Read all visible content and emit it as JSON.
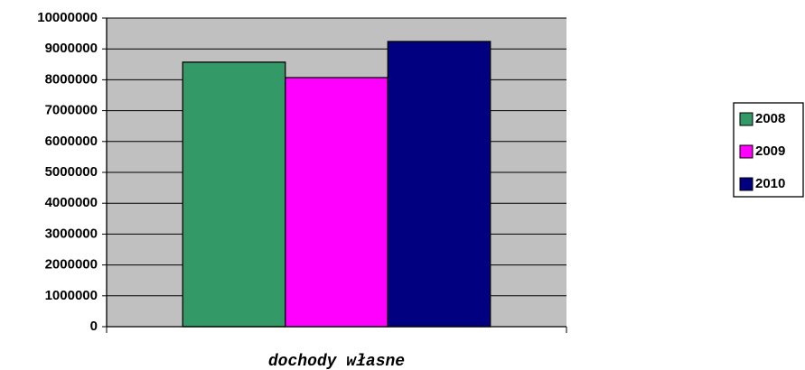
{
  "chart_data": {
    "type": "bar",
    "categories": [
      "dochody własne"
    ],
    "series": [
      {
        "name": "2008",
        "color": "#339966",
        "values": [
          8570000
        ]
      },
      {
        "name": "2009",
        "color": "#ff00ff",
        "values": [
          8070000
        ]
      },
      {
        "name": "2010",
        "color": "#000080",
        "values": [
          9240000
        ]
      }
    ],
    "ylim": [
      0,
      10000000
    ],
    "yticks": [
      0,
      1000000,
      2000000,
      3000000,
      4000000,
      5000000,
      6000000,
      7000000,
      8000000,
      9000000,
      10000000
    ],
    "grid": true,
    "legend": "right"
  }
}
